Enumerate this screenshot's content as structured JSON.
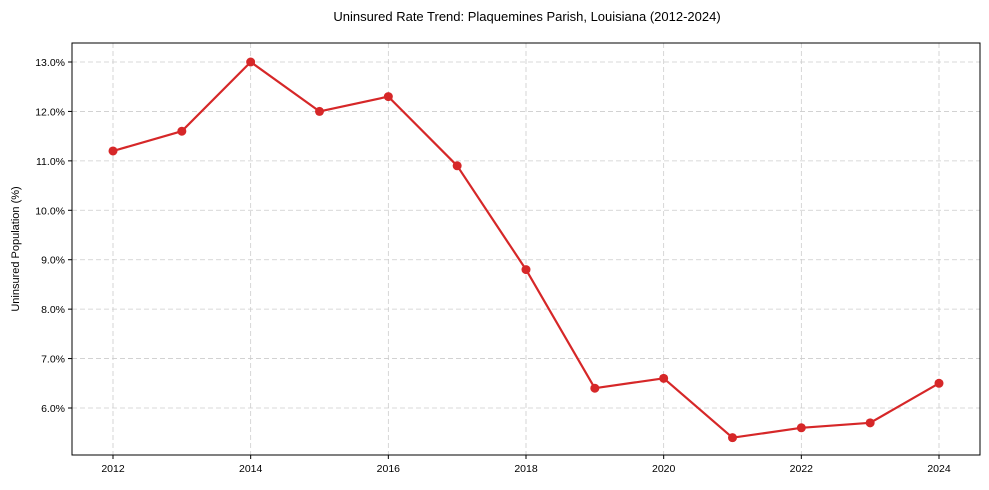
{
  "chart_data": {
    "type": "line",
    "title": "Uninsured Rate Trend: Plaquemines Parish, Louisiana (2012-2024)",
    "xlabel": "",
    "ylabel": "Uninsured Population (%)",
    "x": [
      2012,
      2013,
      2014,
      2015,
      2016,
      2017,
      2018,
      2019,
      2020,
      2021,
      2022,
      2023,
      2024
    ],
    "series": [
      {
        "name": "Uninsured Rate",
        "values": [
          11.2,
          11.6,
          13.0,
          12.0,
          12.3,
          10.9,
          8.8,
          6.4,
          6.6,
          5.4,
          5.6,
          5.7,
          6.5
        ],
        "color": "#d62728"
      }
    ],
    "xticks": [
      2012,
      2014,
      2016,
      2018,
      2020,
      2022,
      2024
    ],
    "xtick_labels": [
      "2012",
      "2014",
      "2016",
      "2018",
      "2020",
      "2022",
      "2024"
    ],
    "yticks": [
      6.0,
      7.0,
      8.0,
      9.0,
      10.0,
      11.0,
      12.0,
      13.0
    ],
    "ytick_labels": [
      "6.0%",
      "7.0%",
      "8.0%",
      "9.0%",
      "10.0%",
      "11.0%",
      "12.0%",
      "13.0%"
    ],
    "xlim": [
      2011.4,
      2025.0
    ],
    "ylim": [
      5.07,
      13.33
    ],
    "grid": true,
    "legend": null
  }
}
